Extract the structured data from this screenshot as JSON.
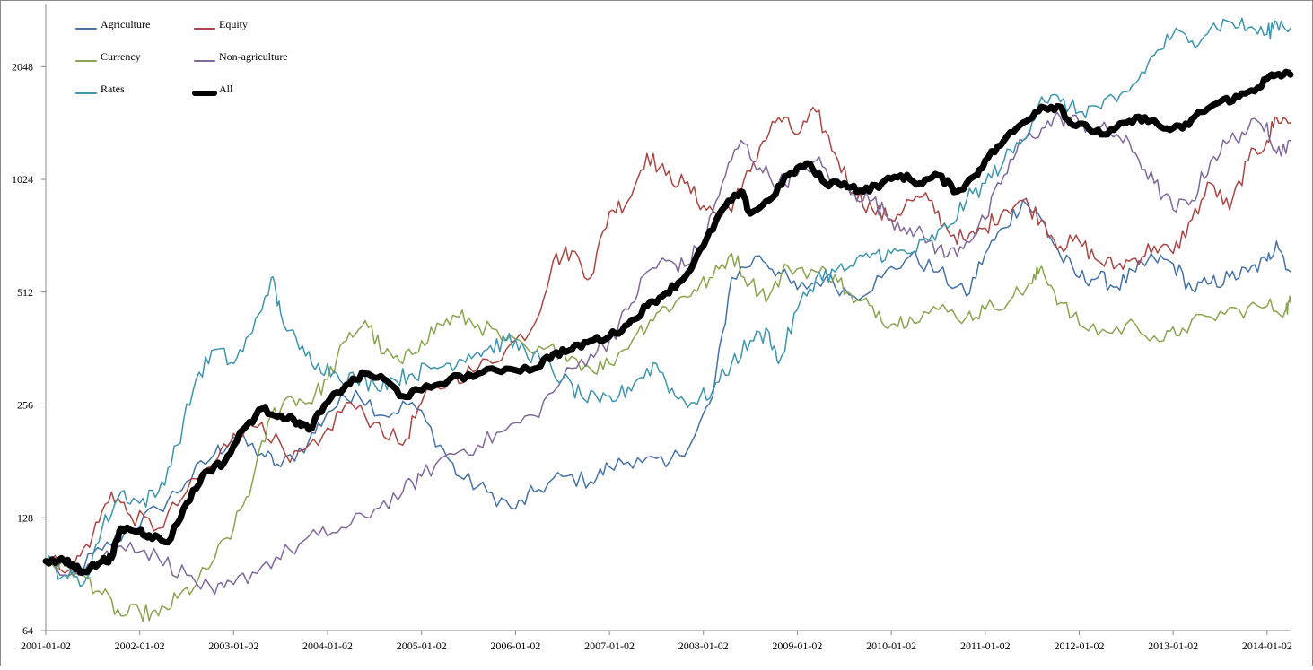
{
  "chart_data": {
    "type": "line",
    "y_scale": "log2",
    "ylim": [
      64,
      3000
    ],
    "y_ticks": [
      "64",
      "128",
      "256",
      "512",
      "1024",
      "2048"
    ],
    "y_tick_values": [
      64,
      128,
      256,
      512,
      1024,
      2048
    ],
    "x_ticks": [
      "2001-01-02",
      "2002-01-02",
      "2003-01-02",
      "2004-01-02",
      "2005-01-02",
      "2006-01-02",
      "2007-01-02",
      "2008-01-02",
      "2009-01-02",
      "2010-01-02",
      "2011-01-02",
      "2012-01-02",
      "2013-01-02",
      "2014-01-02"
    ],
    "x_tick_years": [
      2001,
      2002,
      2003,
      2004,
      2005,
      2006,
      2007,
      2008,
      2009,
      2010,
      2011,
      2012,
      2013,
      2014
    ],
    "xlim": [
      "2001-01-02",
      "2014-04-01"
    ],
    "legend_position": "top-left",
    "grid": false,
    "series": [
      {
        "name": "Agriculture",
        "color": "#4572a7",
        "width": 1.5,
        "x": [
          2001.0,
          2001.3,
          2001.6,
          2001.9,
          2002.2,
          2002.5,
          2002.8,
          2003.0,
          2003.3,
          2003.5,
          2003.8,
          2004.0,
          2004.3,
          2004.6,
          2004.9,
          2005.2,
          2005.4,
          2005.7,
          2006.0,
          2006.2,
          2006.5,
          2006.8,
          2007.0,
          2007.3,
          2007.6,
          2007.9,
          2008.1,
          2008.3,
          2008.6,
          2008.8,
          2009.0,
          2009.3,
          2009.6,
          2009.9,
          2010.2,
          2010.5,
          2010.8,
          2011.0,
          2011.2,
          2011.4,
          2011.6,
          2011.8,
          2012.0,
          2012.2,
          2012.4,
          2012.6,
          2012.8,
          2013.0,
          2013.2,
          2013.4,
          2013.6,
          2013.8,
          2014.0,
          2014.1,
          2014.25
        ],
        "y": [
          98,
          92,
          105,
          120,
          135,
          160,
          190,
          210,
          190,
          175,
          205,
          245,
          280,
          240,
          260,
          200,
          165,
          150,
          135,
          150,
          165,
          160,
          175,
          185,
          175,
          210,
          270,
          560,
          640,
          580,
          520,
          560,
          500,
          560,
          640,
          580,
          500,
          650,
          760,
          900,
          800,
          640,
          560,
          560,
          530,
          580,
          630,
          610,
          520,
          540,
          560,
          580,
          620,
          700,
          580
        ]
      },
      {
        "name": "Equity",
        "color": "#aa4643",
        "width": 1.5,
        "x": [
          2001.0,
          2001.3,
          2001.5,
          2001.7,
          2001.9,
          2002.2,
          2002.5,
          2002.8,
          2003.0,
          2003.3,
          2003.6,
          2003.9,
          2004.2,
          2004.5,
          2004.8,
          2005.0,
          2005.3,
          2005.6,
          2005.9,
          2006.2,
          2006.4,
          2006.6,
          2006.8,
          2007.0,
          2007.2,
          2007.4,
          2007.6,
          2007.8,
          2008.0,
          2008.2,
          2008.4,
          2008.6,
          2008.8,
          2009.0,
          2009.2,
          2009.4,
          2009.6,
          2009.8,
          2010.0,
          2010.2,
          2010.4,
          2010.6,
          2010.8,
          2011.0,
          2011.2,
          2011.4,
          2011.6,
          2011.8,
          2012.0,
          2012.2,
          2012.4,
          2012.6,
          2012.8,
          2013.0,
          2013.2,
          2013.4,
          2013.6,
          2013.8,
          2014.0,
          2014.1,
          2014.25
        ],
        "y": [
          98,
          95,
          115,
          150,
          130,
          120,
          150,
          180,
          215,
          230,
          180,
          200,
          260,
          230,
          200,
          260,
          300,
          320,
          360,
          420,
          620,
          660,
          560,
          840,
          900,
          1200,
          1050,
          1000,
          870,
          820,
          950,
          1250,
          1500,
          1350,
          1550,
          1200,
          950,
          850,
          800,
          900,
          900,
          750,
          700,
          760,
          850,
          900,
          800,
          680,
          700,
          620,
          600,
          630,
          680,
          650,
          800,
          1000,
          850,
          1150,
          1300,
          1500,
          1450
        ]
      },
      {
        "name": "Currency",
        "color": "#89a54e",
        "width": 1.5,
        "x": [
          2001.0,
          2001.2,
          2001.4,
          2001.6,
          2001.8,
          2002.0,
          2002.2,
          2002.4,
          2002.6,
          2002.8,
          2003.0,
          2003.2,
          2003.4,
          2003.6,
          2003.8,
          2004.0,
          2004.2,
          2004.4,
          2004.6,
          2004.8,
          2005.0,
          2005.2,
          2005.4,
          2005.6,
          2005.9,
          2006.2,
          2006.5,
          2006.8,
          2007.0,
          2007.3,
          2007.5,
          2007.7,
          2007.9,
          2008.1,
          2008.3,
          2008.5,
          2008.7,
          2008.9,
          2009.2,
          2009.4,
          2009.6,
          2009.8,
          2010.0,
          2010.2,
          2010.5,
          2010.8,
          2011.0,
          2011.3,
          2011.5,
          2011.6,
          2011.8,
          2012.0,
          2012.3,
          2012.6,
          2012.9,
          2013.1,
          2013.4,
          2013.7,
          2014.0,
          2014.2,
          2014.25
        ],
        "y": [
          98,
          95,
          90,
          80,
          70,
          72,
          70,
          78,
          85,
          100,
          120,
          160,
          240,
          270,
          260,
          300,
          380,
          430,
          350,
          330,
          380,
          420,
          440,
          420,
          380,
          350,
          360,
          320,
          330,
          400,
          450,
          480,
          520,
          560,
          650,
          540,
          500,
          600,
          580,
          570,
          480,
          470,
          420,
          440,
          460,
          440,
          460,
          500,
          540,
          600,
          480,
          420,
          400,
          420,
          380,
          410,
          440,
          460,
          470,
          460,
          480
        ]
      },
      {
        "name": "Non-agriculture",
        "color": "#80699b",
        "width": 1.5,
        "x": [
          2001.0,
          2001.3,
          2001.6,
          2001.9,
          2002.2,
          2002.5,
          2002.8,
          2003.0,
          2003.3,
          2003.6,
          2003.9,
          2004.2,
          2004.5,
          2004.8,
          2005.0,
          2005.3,
          2005.6,
          2005.9,
          2006.2,
          2006.5,
          2006.8,
          2007.0,
          2007.2,
          2007.4,
          2007.6,
          2007.8,
          2008.0,
          2008.2,
          2008.4,
          2008.6,
          2008.8,
          2009.0,
          2009.2,
          2009.4,
          2009.6,
          2009.8,
          2010.0,
          2010.2,
          2010.4,
          2010.6,
          2010.8,
          2011.0,
          2011.2,
          2011.4,
          2011.6,
          2011.8,
          2012.0,
          2012.2,
          2012.4,
          2012.6,
          2012.8,
          2013.0,
          2013.2,
          2013.4,
          2013.6,
          2013.8,
          2014.0,
          2014.1,
          2014.25
        ],
        "y": [
          98,
          92,
          100,
          110,
          100,
          90,
          80,
          85,
          95,
          105,
          115,
          120,
          135,
          150,
          165,
          190,
          200,
          220,
          240,
          300,
          350,
          380,
          460,
          580,
          620,
          600,
          700,
          1000,
          1300,
          1100,
          1000,
          1050,
          1150,
          1000,
          950,
          900,
          800,
          760,
          700,
          640,
          700,
          800,
          1050,
          1300,
          1400,
          1500,
          1450,
          1400,
          1350,
          1200,
          1000,
          850,
          900,
          1150,
          1300,
          1400,
          1450,
          1200,
          1300
        ]
      },
      {
        "name": "Rates",
        "color": "#3d96ae",
        "width": 1.5,
        "x": [
          2001.0,
          2001.2,
          2001.4,
          2001.6,
          2001.8,
          2002.0,
          2002.2,
          2002.4,
          2002.6,
          2002.8,
          2003.0,
          2003.2,
          2003.4,
          2003.5,
          2003.7,
          2003.9,
          2004.1,
          2004.3,
          2004.5,
          2004.7,
          2004.9,
          2005.1,
          2005.3,
          2005.5,
          2005.7,
          2005.9,
          2006.1,
          2006.3,
          2006.5,
          2006.7,
          2006.9,
          2007.1,
          2007.3,
          2007.5,
          2007.7,
          2007.9,
          2008.1,
          2008.3,
          2008.5,
          2008.7,
          2008.8,
          2009.0,
          2009.2,
          2009.4,
          2009.6,
          2009.8,
          2010.0,
          2010.2,
          2010.4,
          2010.6,
          2010.8,
          2011.0,
          2011.2,
          2011.4,
          2011.6,
          2011.8,
          2012.0,
          2012.2,
          2012.4,
          2012.6,
          2012.8,
          2013.0,
          2013.2,
          2013.4,
          2013.6,
          2013.8,
          2014.0,
          2014.1,
          2014.25
        ],
        "y": [
          98,
          90,
          85,
          120,
          150,
          140,
          150,
          200,
          300,
          360,
          330,
          400,
          560,
          450,
          360,
          330,
          310,
          300,
          290,
          300,
          310,
          320,
          330,
          350,
          360,
          380,
          360,
          330,
          300,
          270,
          260,
          270,
          300,
          330,
          270,
          260,
          280,
          330,
          380,
          400,
          330,
          460,
          560,
          580,
          600,
          650,
          650,
          650,
          700,
          760,
          900,
          1000,
          1150,
          1300,
          1700,
          1650,
          1550,
          1600,
          1650,
          1850,
          2200,
          2500,
          2400,
          2600,
          2700,
          2600,
          2500,
          2700,
          2600
        ]
      },
      {
        "name": "All",
        "color": "#000000",
        "width": 7,
        "x": [
          2001.0,
          2001.2,
          2001.3,
          2001.4,
          2001.6,
          2001.7,
          2001.8,
          2002.0,
          2002.1,
          2002.3,
          2002.5,
          2002.7,
          2002.9,
          2003.1,
          2003.3,
          2003.5,
          2003.7,
          2003.8,
          2004.0,
          2004.2,
          2004.4,
          2004.6,
          2004.8,
          2005.0,
          2005.3,
          2005.6,
          2005.9,
          2006.2,
          2006.4,
          2006.6,
          2006.8,
          2007.0,
          2007.2,
          2007.4,
          2007.6,
          2007.8,
          2008.0,
          2008.2,
          2008.4,
          2008.5,
          2008.7,
          2008.9,
          2009.1,
          2009.3,
          2009.5,
          2009.7,
          2009.9,
          2010.1,
          2010.3,
          2010.5,
          2010.7,
          2010.9,
          2011.0,
          2011.2,
          2011.4,
          2011.6,
          2011.8,
          2011.9,
          2012.1,
          2012.3,
          2012.5,
          2012.7,
          2012.9,
          2013.1,
          2013.3,
          2013.5,
          2013.7,
          2013.9,
          2014.0,
          2014.1,
          2014.25
        ],
        "y": [
          98,
          98,
          95,
          92,
          98,
          100,
          120,
          118,
          115,
          110,
          140,
          170,
          180,
          220,
          250,
          240,
          230,
          220,
          260,
          290,
          310,
          300,
          270,
          280,
          300,
          310,
          320,
          320,
          350,
          360,
          380,
          390,
          420,
          470,
          510,
          560,
          680,
          850,
          950,
          830,
          900,
          1050,
          1130,
          1000,
          1000,
          950,
          1000,
          1050,
          1000,
          1050,
          950,
          1050,
          1150,
          1300,
          1450,
          1600,
          1600,
          1450,
          1400,
          1350,
          1450,
          1500,
          1400,
          1400,
          1550,
          1650,
          1700,
          1800,
          1900,
          1950,
          1950
        ]
      }
    ]
  }
}
